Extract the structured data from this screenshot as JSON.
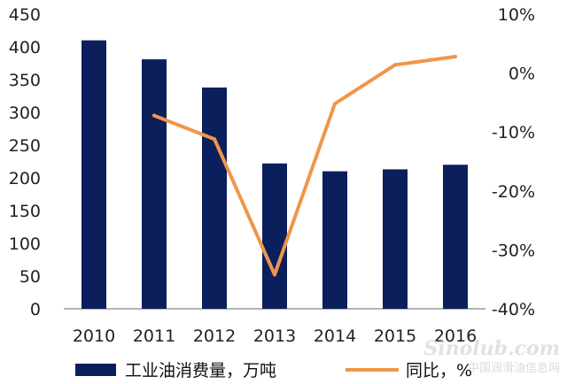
{
  "chart_data": {
    "type": "bar",
    "categories": [
      "2010",
      "2011",
      "2012",
      "2013",
      "2014",
      "2015",
      "2016"
    ],
    "series": [
      {
        "name": "工业油消费量，万吨",
        "type": "bar",
        "axis": "left",
        "color": "#0b1f5c",
        "values": [
          410,
          381,
          338,
          222,
          210,
          213,
          220
        ]
      },
      {
        "name": "同比，%",
        "type": "line",
        "axis": "right",
        "color": "#f0964a",
        "values": [
          null,
          -7.2,
          -11.2,
          -34.2,
          -5.2,
          1.4,
          2.8
        ]
      }
    ],
    "ylim_left": [
      0,
      450
    ],
    "yticks_left": [
      "0",
      "50",
      "100",
      "150",
      "200",
      "250",
      "300",
      "350",
      "400",
      "450"
    ],
    "ylim_right": [
      -40,
      10
    ],
    "yticks_right": [
      "-40%",
      "-30%",
      "-20%",
      "-10%",
      "0%",
      "10%"
    ],
    "grid": false,
    "legend_position": "bottom"
  },
  "watermark": {
    "logo": "Sinolub.com",
    "subtitle": "中国润滑油信息网"
  }
}
